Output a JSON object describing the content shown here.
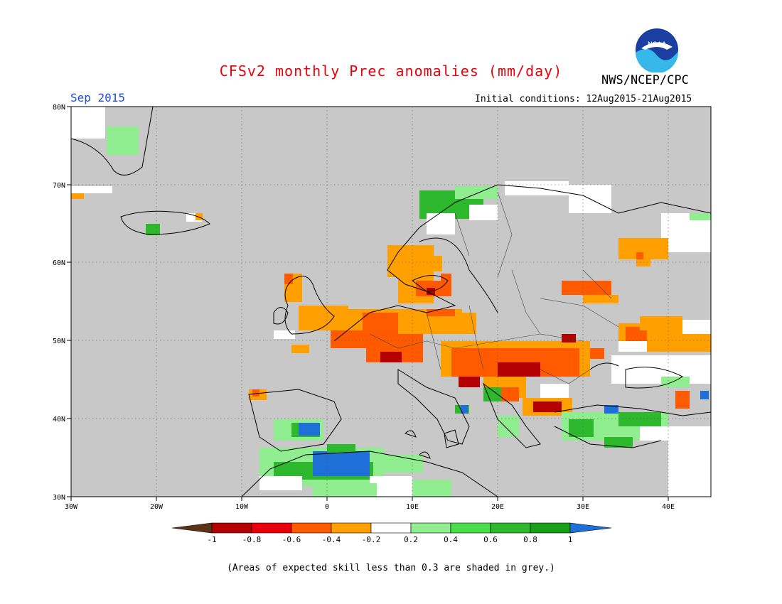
{
  "header": {
    "title": "CFSv2 monthly Prec anomalies (mm/day)",
    "agency": "NWS/NCEP/CPC",
    "logo_text": "NOAA",
    "valid_month": "Sep 2015",
    "initial_conditions": "Initial conditions: 12Aug2015-21Aug2015"
  },
  "map": {
    "projection": "lat-lon",
    "lon_range": [
      -30,
      45
    ],
    "lat_range": [
      30,
      80
    ],
    "lat_labels": [
      "30N",
      "40N",
      "50N",
      "60N",
      "70N",
      "80N"
    ],
    "lon_labels": [
      "30W",
      "20W",
      "10W",
      "0",
      "10E",
      "20E",
      "30E",
      "40E"
    ],
    "background_color": "#c8c8c8",
    "grid": "dotted"
  },
  "legend": {
    "labels": [
      "-1",
      "-0.8",
      "-0.6",
      "-0.4",
      "-0.2",
      "0.2",
      "0.4",
      "0.6",
      "0.8",
      "1"
    ],
    "colors": [
      "#5c3317",
      "#b30000",
      "#e8000b",
      "#ff5a00",
      "#ffa000",
      "#ffffff",
      "#90ee90",
      "#4ade4a",
      "#2eb82e",
      "#1a9e1a",
      "#1f6fd8"
    ]
  },
  "footnote": "(Areas of expected skill less than 0.3 are shaded in grey.)"
}
